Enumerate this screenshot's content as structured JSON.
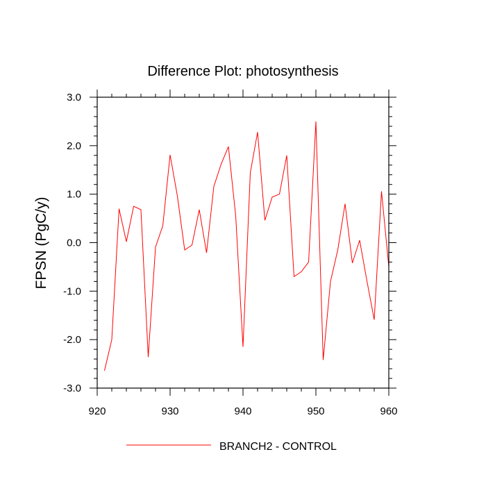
{
  "chart_data": {
    "type": "line",
    "title": "Difference Plot: photosynthesis",
    "ylabel": "FPSN  (PgC/y)",
    "xlabel": "",
    "xlim": [
      920,
      960
    ],
    "ylim": [
      -3.0,
      3.0
    ],
    "xticks": [
      920,
      930,
      940,
      950,
      960
    ],
    "yticks": [
      -3.0,
      -2.0,
      -1.0,
      0.0,
      1.0,
      2.0,
      3.0
    ],
    "ytick_labels": [
      "-3.0",
      "-2.0",
      "-1.0",
      "0.0",
      "1.0",
      "2.0",
      "3.0"
    ],
    "grid": false,
    "legend_position": "bottom",
    "series": [
      {
        "name": "BRANCH2 - CONTROL",
        "color": "#ff0000",
        "x": [
          921,
          922,
          923,
          924,
          925,
          926,
          927,
          928,
          929,
          930,
          931,
          932,
          933,
          934,
          935,
          936,
          937,
          938,
          939,
          940,
          941,
          942,
          943,
          944,
          945,
          946,
          947,
          948,
          949,
          950,
          951,
          952,
          953,
          954,
          955,
          956,
          957,
          958,
          959,
          960
        ],
        "y": [
          -2.64,
          -2.0,
          0.7,
          0.02,
          0.75,
          0.68,
          -2.36,
          -0.09,
          0.35,
          1.81,
          0.96,
          -0.15,
          -0.05,
          0.68,
          -0.21,
          1.16,
          1.62,
          1.98,
          0.55,
          -2.15,
          1.44,
          2.28,
          0.46,
          0.94,
          1.0,
          1.8,
          -0.7,
          -0.6,
          -0.4,
          2.5,
          -2.42,
          -0.8,
          -0.15,
          0.8,
          -0.42,
          0.05,
          -0.79,
          -1.59,
          1.06,
          -0.5
        ]
      }
    ]
  }
}
